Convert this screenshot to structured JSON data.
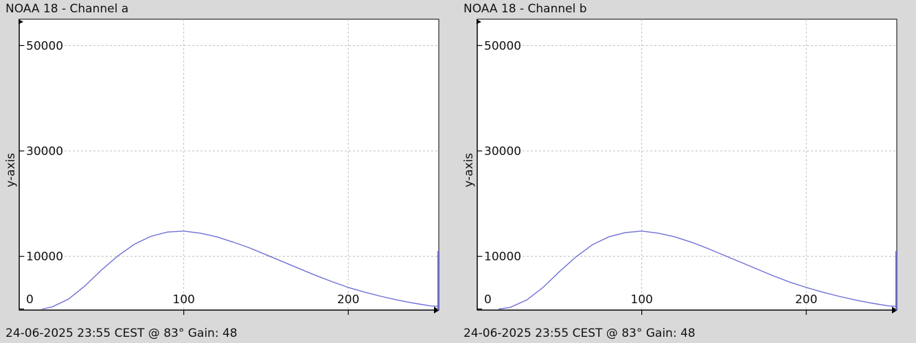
{
  "colors": {
    "background": "#d9d9d9",
    "plot_area": "#ffffff",
    "series": "#6d6ed6",
    "grid": "#bdbdbd",
    "axis": "#000000"
  },
  "panels": [
    {
      "title": "NOAA 18 - Channel a",
      "footer": "24-06-2025 23:55 CEST @ 83° Gain: 48",
      "chart_data": {
        "type": "line",
        "title": "NOAA 18 - Channel a",
        "ylabel": "y-axis",
        "xlabel": "",
        "xlim": [
          0,
          255
        ],
        "ylim": [
          -200,
          55000
        ],
        "x_ticks": [
          {
            "value": 100,
            "label": "100"
          },
          {
            "value": 200,
            "label": "200"
          }
        ],
        "y_ticks": [
          {
            "value": 0,
            "label": "0"
          },
          {
            "value": 10000,
            "label": "10000"
          },
          {
            "value": 30000,
            "label": "30000"
          },
          {
            "value": 50000,
            "label": "50000"
          }
        ],
        "grid": true,
        "series": [
          {
            "x": [
              14,
              20,
              30,
              40,
              50,
              60,
              70,
              80,
              90,
              100,
              110,
              120,
              130,
              140,
              150,
              160,
              170,
              180,
              190,
              200,
              210,
              220,
              230,
              240,
              250,
              255
            ],
            "y": [
              0,
              400,
              1900,
              4400,
              7400,
              10100,
              12300,
              13800,
              14600,
              14800,
              14400,
              13700,
              12700,
              11600,
              10300,
              9000,
              7700,
              6400,
              5200,
              4100,
              3200,
              2400,
              1700,
              1100,
              600,
              500
            ]
          }
        ],
        "end_spike": {
          "x": 255,
          "y": 11000
        }
      }
    },
    {
      "title": "NOAA 18 - Channel b",
      "footer": "24-06-2025 23:55 CEST @ 83° Gain: 48",
      "chart_data": {
        "type": "line",
        "title": "NOAA 18 - Channel b",
        "ylabel": "y-axis",
        "xlabel": "",
        "xlim": [
          0,
          255
        ],
        "ylim": [
          -200,
          55000
        ],
        "x_ticks": [
          {
            "value": 100,
            "label": "100"
          },
          {
            "value": 200,
            "label": "200"
          }
        ],
        "y_ticks": [
          {
            "value": 0,
            "label": "0"
          },
          {
            "value": 10000,
            "label": "10000"
          },
          {
            "value": 30000,
            "label": "30000"
          },
          {
            "value": 50000,
            "label": "50000"
          }
        ],
        "grid": true,
        "series": [
          {
            "x": [
              13,
              20,
              30,
              40,
              50,
              60,
              70,
              80,
              90,
              100,
              110,
              120,
              130,
              140,
              150,
              160,
              170,
              180,
              190,
              200,
              210,
              220,
              230,
              240,
              250,
              255
            ],
            "y": [
              0,
              300,
              1700,
              4100,
              7100,
              9900,
              12200,
              13700,
              14500,
              14800,
              14400,
              13700,
              12700,
              11500,
              10200,
              8900,
              7600,
              6300,
              5100,
              4100,
              3200,
              2400,
              1700,
              1100,
              600,
              500
            ]
          }
        ],
        "end_spike": {
          "x": 255,
          "y": 11000
        }
      }
    }
  ]
}
